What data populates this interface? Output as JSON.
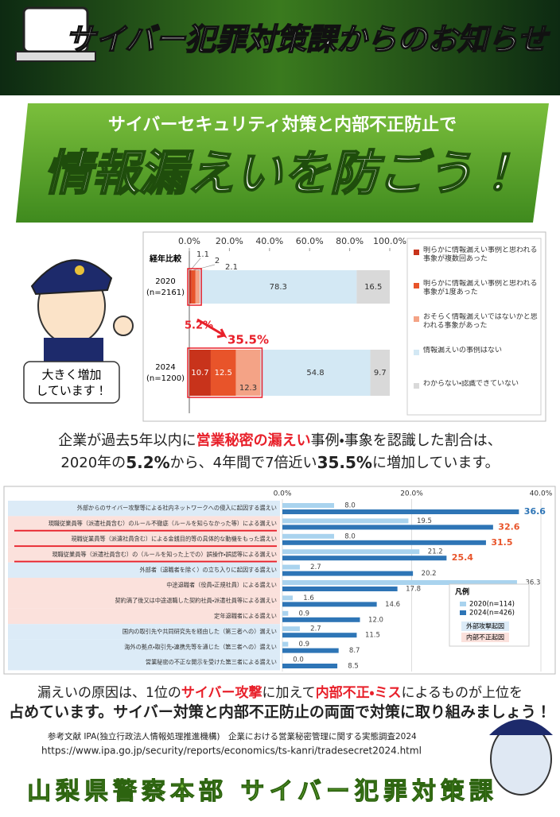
{
  "header": {
    "title": "サイバー犯罪対策課からのお知らせ",
    "subtitle": "サイバーセキュリティ対策と内部不正防止で",
    "headline": "情報漏えいを防ごう！"
  },
  "bubble": [
    "大きく増加",
    "しています！"
  ],
  "chart_data": [
    {
      "type": "bar",
      "stacked": true,
      "orientation": "horizontal",
      "title": "経年比較",
      "categories": [
        "2020",
        "2024"
      ],
      "category_notes": [
        "(n=2161)",
        "(n=1200)"
      ],
      "series": [
        {
          "name": "明らかに情報漏えい事例と思われる事象が複数回あった",
          "color": "#c8331b",
          "values": [
            1.1,
            10.7
          ]
        },
        {
          "name": "明らかに情報漏えい事例と思われる事象が1度あった",
          "color": "#e8542a",
          "values": [
            2.0,
            12.5
          ]
        },
        {
          "name": "おそらく情報漏えいではないかと思われる事象があった",
          "color": "#f4a386",
          "values": [
            2.1,
            12.3
          ]
        },
        {
          "name": "情報漏えいの事例はない",
          "color": "#d3e8f4",
          "values": [
            78.3,
            54.8
          ]
        },
        {
          "name": "わからない・認識できていない",
          "color": "#d9d9d9",
          "values": [
            16.5,
            9.7
          ]
        }
      ],
      "xlim": [
        0,
        100
      ],
      "xticks": [
        {
          "value": 0,
          "label": "0.0%"
        },
        {
          "value": 20,
          "label": "20.0%"
        },
        {
          "value": 40,
          "label": "40.0%"
        },
        {
          "value": 60,
          "label": "60.0%"
        },
        {
          "value": 80,
          "label": "80.0%"
        },
        {
          "value": 100,
          "label": "100.0%"
        }
      ],
      "annotations": [
        {
          "text": "5.2%",
          "value": 5.2
        },
        {
          "text": "35.5%",
          "value": 35.5
        }
      ]
    },
    {
      "type": "bar",
      "stacked": false,
      "orientation": "horizontal",
      "categories": [
        "外部からのサイバー攻撃等による社内ネットワークへの侵入に起因する漏えい",
        "現職従業員等（派遣社員含む）のルール不徹底（ルールを知らなかった等）による漏えい",
        "現職従業員等（派遣社員含む）による金銭目的等の具体的な動機をもった漏えい",
        "現職従業員等（派遣社員含む）の（ルールを知った上での）誤操作・誤認等による漏えい",
        "外部者（退職者を除く）の立ち入りに起因する漏えい",
        "中途退職者（役員・正規社員）による漏えい",
        "契約満了後又は中途退職した契約社員・派遣社員等による漏えい",
        "定年退職者による漏えい",
        "国内の取引先や共同研究先を経由した（第三者への）漏えい",
        "海外の拠点・取引先・連携先等を通じた（第三者への）漏えい",
        "営業秘密の不正な開示を受けた第三者による漏えい"
      ],
      "category_colors": [
        "#dcebf7",
        "#fbe1dc",
        "#fbe1dc",
        "#fbe1dc",
        "#dcebf7",
        "#fbe1dc",
        "#fbe1dc",
        "#fbe1dc",
        "#dcebf7",
        "#dcebf7",
        "#dcebf7"
      ],
      "underlined": [
        false,
        true,
        true,
        true,
        false,
        false,
        false,
        false,
        false,
        false,
        false
      ],
      "series": [
        {
          "name": "2020(n=114)",
          "color": "#a9d3ee",
          "values": [
            8.0,
            19.5,
            8.0,
            21.2,
            2.7,
            36.3,
            1.6,
            0.9,
            2.7,
            0.9,
            0.0
          ],
          "value_labels": [
            "8.0",
            "19.5",
            "8.0",
            "21.2",
            "2.7",
            "36.3",
            "1.6",
            "0.9",
            "2.7",
            "0.9",
            "0.0"
          ]
        },
        {
          "name": "2024(n=426)",
          "color": "#2e75b6",
          "values": [
            36.6,
            32.6,
            31.5,
            25.4,
            20.2,
            17.8,
            14.6,
            12.0,
            11.5,
            8.7,
            8.5
          ],
          "value_labels": [
            "36.6",
            "32.6",
            "31.5",
            "25.4",
            "20.2",
            "17.8",
            "14.6",
            "12.0",
            "11.5",
            "8.7",
            "8.5"
          ],
          "label_colors": [
            "#2e75b6",
            "#e8542a",
            "#e8542a",
            "#e8542a",
            null,
            null,
            null,
            null,
            null,
            null,
            null
          ]
        }
      ],
      "xlim": [
        0,
        40
      ],
      "xticks": [
        {
          "value": 0,
          "label": "0.0%"
        },
        {
          "value": 20,
          "label": "20.0%"
        },
        {
          "value": 40,
          "label": "40.0%"
        }
      ],
      "legend_title": "凡例",
      "legend_groups": [
        {
          "name": "外部攻撃起因",
          "color": "#dcebf7"
        },
        {
          "name": "内部不正起因",
          "color": "#fbe1dc"
        }
      ],
      "grid": true
    }
  ],
  "summary1": [
    [
      {
        "text": "企業が過去5年以内に",
        "style": "plain"
      },
      {
        "text": "営業秘密の漏えい",
        "style": "red"
      },
      {
        "text": "事例・事象を認識した割合は、",
        "style": "plain"
      }
    ],
    [
      {
        "text": "2020年の",
        "style": "plain"
      },
      {
        "text": "5.2%",
        "style": "bold"
      },
      {
        "text": "から、4年間で7倍近い",
        "style": "plain"
      },
      {
        "text": "35.5%",
        "style": "bold"
      },
      {
        "text": "に増加しています。",
        "style": "plain"
      }
    ]
  ],
  "summary2": [
    [
      {
        "text": "漏えいの原因は、1位の",
        "style": "plain"
      },
      {
        "text": "サイバー攻撃",
        "style": "red"
      },
      {
        "text": "に加えて",
        "style": "plain"
      },
      {
        "text": "内部不正・ミス",
        "style": "red"
      },
      {
        "text": "によるものが上位を",
        "style": "plain"
      }
    ],
    [
      {
        "text": "占めています。サイバー対策と内部不正防止の両面で対策に取り組みましょう！",
        "style": "bold"
      }
    ]
  ],
  "reference": [
    "参考文献 IPA(独立行政法人情報処理推進機構)　企業における営業秘密管理に関する実態調査2024",
    "https://www.ipa.go.jp/security/reports/economics/ts-kanri/tradesecret2024.html"
  ],
  "footer": "山梨県警察本部 サイバー犯罪対策課"
}
